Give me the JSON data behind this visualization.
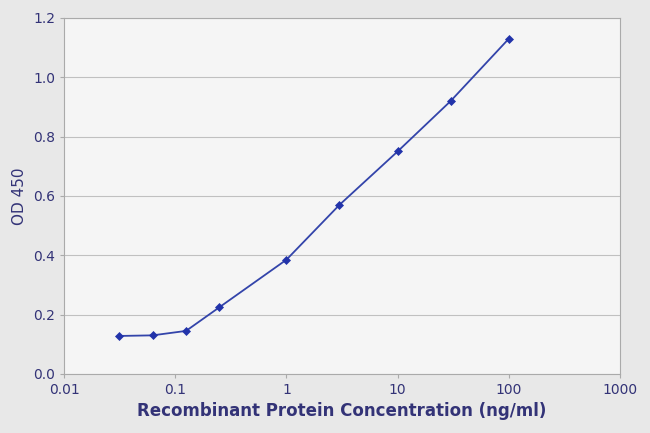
{
  "x_values": [
    0.0313,
    0.0625,
    0.125,
    0.25,
    1.0,
    3.0,
    10.0,
    30.0,
    100.0
  ],
  "y_values": [
    0.128,
    0.13,
    0.145,
    0.225,
    0.385,
    0.57,
    0.75,
    0.92,
    1.13
  ],
  "line_color": "#3344aa",
  "marker_color": "#2233aa",
  "marker_style": "D",
  "marker_size": 4.5,
  "line_width": 1.3,
  "xlabel": "Recombinant Protein Concentration (ng/ml)",
  "ylabel": "OD 450",
  "xlim": [
    0.01,
    1000
  ],
  "ylim": [
    0,
    1.2
  ],
  "yticks": [
    0,
    0.2,
    0.4,
    0.6,
    0.8,
    1.0,
    1.2
  ],
  "xtick_values": [
    0.01,
    0.1,
    1,
    10,
    100,
    1000
  ],
  "xtick_labels": [
    "0.01",
    "0.1",
    "1",
    "10",
    "100",
    "1000"
  ],
  "background_color": "#e8e8e8",
  "plot_background": "#f5f5f5",
  "grid_color": "#c0c0c0",
  "xlabel_fontsize": 12,
  "ylabel_fontsize": 11,
  "tick_fontsize": 10,
  "xlabel_bold": true,
  "ylabel_bold": false,
  "text_color": "#333377"
}
